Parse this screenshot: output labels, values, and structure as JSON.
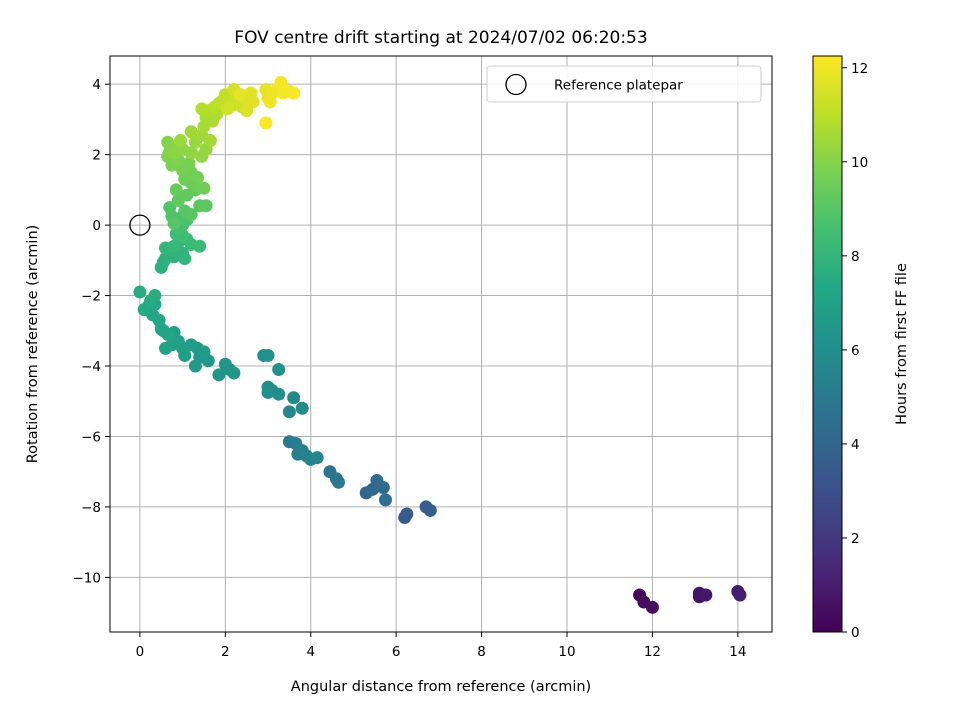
{
  "chart_data": {
    "type": "scatter",
    "title": "FOV centre drift starting at 2024/07/02 06:20:53",
    "xlabel": "Angular distance from reference (arcmin)",
    "ylabel": "Rotation from reference (arcmin)",
    "xlim": [
      -0.7,
      14.8
    ],
    "ylim": [
      -11.55,
      4.8
    ],
    "xticks": [
      0,
      2,
      4,
      6,
      8,
      10,
      12,
      14
    ],
    "yticks": [
      -10,
      -8,
      -6,
      -4,
      -2,
      0,
      2,
      4
    ],
    "xtick_labels": [
      "0",
      "2",
      "4",
      "6",
      "8",
      "10",
      "12",
      "14"
    ],
    "ytick_labels": [
      "−10",
      "−8",
      "−6",
      "−4",
      "−2",
      "0",
      "2",
      "4"
    ],
    "grid": true,
    "legend": {
      "position": "top-right",
      "entries": [
        "Reference platepar"
      ]
    },
    "reference_point": {
      "label": "Reference platepar",
      "x": 0,
      "y": 0
    },
    "colorbar": {
      "label": "Hours from first FF file",
      "colormap": "viridis",
      "range": [
        0,
        12.25
      ],
      "ticks": [
        0,
        2,
        4,
        6,
        8,
        10,
        12
      ],
      "tick_labels": [
        "0",
        "2",
        "4",
        "6",
        "8",
        "10",
        "12"
      ]
    },
    "points": [
      [
        11.7,
        -10.5,
        0.3
      ],
      [
        11.8,
        -10.7,
        0.4
      ],
      [
        12.0,
        -10.85,
        0.5
      ],
      [
        13.1,
        -10.55,
        0.6
      ],
      [
        13.1,
        -10.45,
        0.7
      ],
      [
        13.25,
        -10.5,
        0.8
      ],
      [
        14.0,
        -10.4,
        0.9
      ],
      [
        14.05,
        -10.5,
        1.0
      ],
      [
        6.2,
        -8.3,
        3.4
      ],
      [
        6.25,
        -8.2,
        3.5
      ],
      [
        6.7,
        -8.0,
        3.6
      ],
      [
        6.8,
        -8.1,
        3.7
      ],
      [
        5.3,
        -7.6,
        4.0
      ],
      [
        5.45,
        -7.5,
        4.1
      ],
      [
        5.55,
        -7.25,
        4.2
      ],
      [
        5.7,
        -7.45,
        4.3
      ],
      [
        5.75,
        -7.8,
        4.4
      ],
      [
        4.45,
        -7.0,
        4.7
      ],
      [
        4.6,
        -7.2,
        4.8
      ],
      [
        4.65,
        -7.3,
        4.9
      ],
      [
        3.5,
        -6.15,
        5.0
      ],
      [
        3.65,
        -6.2,
        5.1
      ],
      [
        3.7,
        -6.5,
        5.2
      ],
      [
        3.8,
        -6.4,
        5.3
      ],
      [
        3.9,
        -6.55,
        5.4
      ],
      [
        4.0,
        -6.65,
        5.5
      ],
      [
        4.15,
        -6.6,
        5.6
      ],
      [
        3.5,
        -5.3,
        5.6
      ],
      [
        3.6,
        -4.9,
        5.7
      ],
      [
        3.8,
        -5.2,
        5.8
      ],
      [
        3.0,
        -4.6,
        5.9
      ],
      [
        3.1,
        -4.7,
        6.0
      ],
      [
        3.25,
        -4.8,
        6.0
      ],
      [
        3.0,
        -4.75,
        6.1
      ],
      [
        2.9,
        -3.7,
        6.1
      ],
      [
        3.0,
        -3.7,
        6.2
      ],
      [
        3.25,
        -4.1,
        6.2
      ],
      [
        1.85,
        -4.25,
        6.3
      ],
      [
        2.0,
        -3.95,
        6.35
      ],
      [
        2.1,
        -4.1,
        6.4
      ],
      [
        2.2,
        -4.2,
        6.45
      ],
      [
        1.6,
        -3.85,
        6.5
      ],
      [
        1.4,
        -3.75,
        6.55
      ],
      [
        1.3,
        -4.0,
        6.6
      ],
      [
        1.35,
        -3.5,
        6.65
      ],
      [
        1.5,
        -3.6,
        6.7
      ],
      [
        1.2,
        -3.4,
        6.75
      ],
      [
        1.05,
        -3.7,
        6.8
      ],
      [
        1.0,
        -3.5,
        6.85
      ],
      [
        0.9,
        -3.3,
        6.9
      ],
      [
        0.8,
        -3.05,
        6.95
      ],
      [
        0.75,
        -3.4,
        7.0
      ],
      [
        0.6,
        -3.5,
        7.05
      ],
      [
        0.5,
        -2.95,
        7.1
      ],
      [
        0.55,
        -3.0,
        7.15
      ],
      [
        0.65,
        -3.1,
        7.2
      ],
      [
        0.45,
        -2.7,
        7.25
      ],
      [
        0.3,
        -2.55,
        7.3
      ],
      [
        0.35,
        -2.25,
        7.35
      ],
      [
        0.2,
        -2.3,
        7.4
      ],
      [
        0.1,
        -2.4,
        7.45
      ],
      [
        0.25,
        -2.15,
        7.5
      ],
      [
        0.0,
        -1.9,
        7.55
      ],
      [
        0.35,
        -2.0,
        7.6
      ],
      [
        0.5,
        -1.2,
        7.7
      ],
      [
        0.55,
        -1.05,
        7.75
      ],
      [
        0.6,
        -0.95,
        7.8
      ],
      [
        0.7,
        -0.85,
        7.85
      ],
      [
        0.8,
        -0.9,
        7.9
      ],
      [
        1.0,
        -0.8,
        7.95
      ],
      [
        1.05,
        -0.95,
        8.0
      ],
      [
        0.6,
        -0.65,
        8.05
      ],
      [
        0.8,
        -0.6,
        8.1
      ],
      [
        0.9,
        -0.5,
        8.15
      ],
      [
        1.1,
        -0.4,
        8.2
      ],
      [
        1.2,
        -0.55,
        8.25
      ],
      [
        1.4,
        -0.6,
        8.3
      ],
      [
        1.0,
        -0.3,
        8.35
      ],
      [
        0.85,
        -0.25,
        8.4
      ],
      [
        0.9,
        -0.1,
        8.5
      ],
      [
        1.0,
        0.0,
        8.6
      ],
      [
        0.95,
        0.2,
        8.7
      ],
      [
        1.1,
        0.15,
        8.8
      ],
      [
        0.75,
        0.25,
        8.85
      ],
      [
        0.7,
        0.5,
        8.9
      ],
      [
        0.8,
        0.05,
        8.95
      ],
      [
        1.05,
        0.4,
        9.0
      ],
      [
        1.2,
        0.3,
        9.05
      ],
      [
        1.4,
        0.55,
        9.1
      ],
      [
        1.55,
        0.55,
        9.15
      ],
      [
        0.9,
        0.7,
        9.2
      ],
      [
        1.1,
        0.85,
        9.25
      ],
      [
        1.3,
        1.0,
        9.3
      ],
      [
        0.85,
        1.0,
        9.35
      ],
      [
        1.2,
        1.2,
        9.4
      ],
      [
        1.35,
        1.1,
        9.45
      ],
      [
        1.05,
        1.3,
        9.5
      ],
      [
        1.5,
        1.05,
        9.55
      ],
      [
        1.2,
        1.5,
        9.6
      ],
      [
        1.35,
        1.35,
        9.65
      ],
      [
        1.0,
        1.55,
        9.7
      ],
      [
        1.15,
        1.75,
        9.75
      ],
      [
        0.75,
        1.7,
        9.8
      ],
      [
        0.9,
        1.85,
        9.85
      ],
      [
        0.65,
        1.95,
        9.9
      ],
      [
        0.7,
        2.1,
        9.95
      ],
      [
        0.65,
        2.35,
        10.0
      ],
      [
        0.85,
        2.25,
        10.05
      ],
      [
        0.8,
        2.05,
        10.1
      ],
      [
        1.0,
        2.15,
        10.15
      ],
      [
        1.2,
        2.05,
        10.2
      ],
      [
        1.45,
        1.95,
        10.25
      ],
      [
        1.55,
        2.15,
        10.3
      ],
      [
        1.3,
        2.35,
        10.35
      ],
      [
        0.95,
        2.4,
        10.4
      ],
      [
        1.2,
        2.65,
        10.45
      ],
      [
        1.45,
        2.55,
        10.5
      ],
      [
        1.65,
        2.4,
        10.55
      ],
      [
        1.5,
        2.8,
        10.6
      ],
      [
        1.55,
        3.05,
        10.65
      ],
      [
        1.7,
        2.95,
        10.7
      ],
      [
        1.8,
        3.15,
        10.75
      ],
      [
        1.6,
        3.25,
        10.8
      ],
      [
        1.45,
        3.3,
        10.85
      ],
      [
        1.75,
        3.35,
        10.9
      ],
      [
        1.85,
        3.45,
        11.0
      ],
      [
        1.95,
        3.55,
        11.05
      ],
      [
        2.0,
        3.7,
        11.1
      ],
      [
        2.1,
        3.6,
        11.15
      ],
      [
        2.25,
        3.75,
        11.2
      ],
      [
        2.15,
        3.4,
        11.25
      ],
      [
        2.3,
        3.5,
        11.3
      ],
      [
        2.4,
        3.35,
        11.35
      ],
      [
        2.05,
        3.3,
        11.4
      ],
      [
        2.2,
        3.85,
        11.45
      ],
      [
        2.45,
        3.6,
        11.5
      ],
      [
        2.55,
        3.45,
        11.55
      ],
      [
        2.5,
        3.25,
        11.6
      ],
      [
        2.6,
        3.75,
        11.65
      ],
      [
        2.65,
        3.5,
        11.7
      ],
      [
        2.35,
        3.7,
        11.75
      ],
      [
        2.95,
        3.85,
        11.8
      ],
      [
        3.0,
        3.6,
        11.85
      ],
      [
        3.1,
        3.75,
        11.9
      ],
      [
        3.2,
        3.85,
        11.95
      ],
      [
        3.05,
        3.5,
        12.0
      ],
      [
        3.35,
        3.75,
        12.05
      ],
      [
        3.5,
        3.8,
        12.1
      ],
      [
        3.3,
        4.05,
        12.15
      ],
      [
        3.6,
        3.75,
        12.2
      ],
      [
        2.95,
        2.9,
        12.2
      ]
    ]
  }
}
